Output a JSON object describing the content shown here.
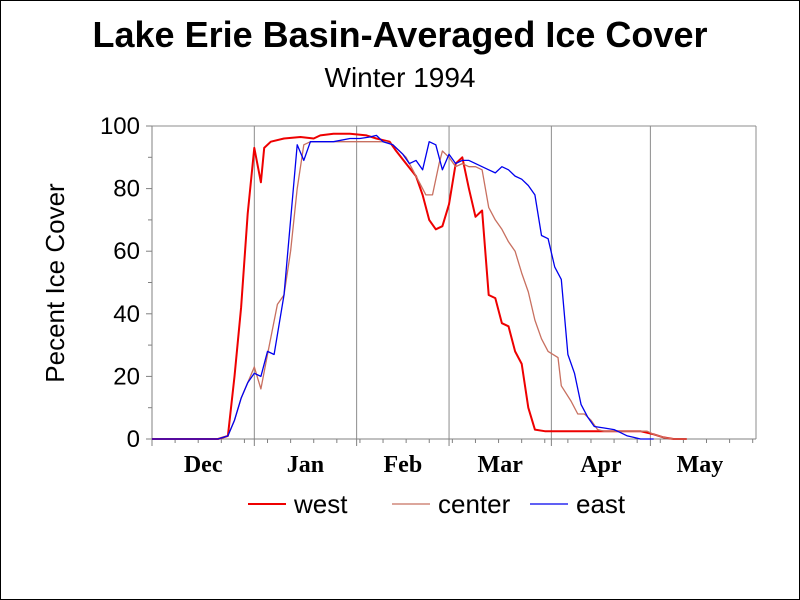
{
  "chart_data": {
    "type": "line",
    "title": "Lake Erie Basin-Averaged Ice Cover",
    "subtitle": "Winter 1994",
    "xlabel": "",
    "ylabel": "Pecent Ice Cover",
    "x_unit": "day of season (Dec 1 = 0)",
    "xlim": [
      0,
      183
    ],
    "ylim": [
      0,
      100
    ],
    "yticks": [
      0,
      20,
      40,
      60,
      80,
      100
    ],
    "months": [
      {
        "label": "Dec",
        "start": 0
      },
      {
        "label": "Jan",
        "start": 31
      },
      {
        "label": "Feb",
        "start": 62
      },
      {
        "label": "Mar",
        "start": 90
      },
      {
        "label": "Apr",
        "start": 121
      },
      {
        "label": "May",
        "start": 151
      }
    ],
    "legend_position": "bottom",
    "grid": "vertical",
    "series": [
      {
        "name": "west",
        "color": "#ee0000",
        "points": [
          [
            0,
            0
          ],
          [
            15,
            0
          ],
          [
            20,
            0
          ],
          [
            23,
            1
          ],
          [
            25,
            20
          ],
          [
            27,
            42
          ],
          [
            29,
            72
          ],
          [
            31,
            93
          ],
          [
            33,
            82
          ],
          [
            34,
            93
          ],
          [
            36,
            95
          ],
          [
            40,
            96
          ],
          [
            45,
            96.5
          ],
          [
            49,
            96
          ],
          [
            51,
            97
          ],
          [
            55,
            97.5
          ],
          [
            60,
            97.5
          ],
          [
            65,
            97
          ],
          [
            68,
            96
          ],
          [
            72,
            95
          ],
          [
            74,
            92
          ],
          [
            77,
            88
          ],
          [
            80,
            84
          ],
          [
            82,
            78
          ],
          [
            84,
            70
          ],
          [
            86,
            67
          ],
          [
            88,
            68
          ],
          [
            90,
            75
          ],
          [
            92,
            88
          ],
          [
            94,
            90
          ],
          [
            96,
            80
          ],
          [
            98,
            71
          ],
          [
            100,
            73
          ],
          [
            102,
            46
          ],
          [
            104,
            45
          ],
          [
            106,
            37
          ],
          [
            108,
            36
          ],
          [
            110,
            28
          ],
          [
            112,
            24
          ],
          [
            114,
            10
          ],
          [
            116,
            3
          ],
          [
            119,
            2.5
          ],
          [
            123,
            2.5
          ],
          [
            128,
            2.5
          ],
          [
            132,
            2.5
          ],
          [
            136,
            2.5
          ],
          [
            140,
            2.5
          ],
          [
            144,
            2.5
          ],
          [
            148,
            2.5
          ],
          [
            152,
            1.5
          ],
          [
            155,
            0.5
          ],
          [
            158,
            0
          ],
          [
            162,
            0
          ]
        ]
      },
      {
        "name": "center",
        "color": "#c87060",
        "points": [
          [
            0,
            0
          ],
          [
            15,
            0
          ],
          [
            20,
            0
          ],
          [
            23,
            1
          ],
          [
            25,
            6
          ],
          [
            27,
            13
          ],
          [
            29,
            18
          ],
          [
            31,
            23
          ],
          [
            33,
            16
          ],
          [
            35,
            27
          ],
          [
            38,
            43
          ],
          [
            40,
            46
          ],
          [
            42,
            60
          ],
          [
            44,
            80
          ],
          [
            46,
            94
          ],
          [
            48,
            95
          ],
          [
            51,
            95
          ],
          [
            55,
            95
          ],
          [
            60,
            95
          ],
          [
            64,
            95
          ],
          [
            68,
            95
          ],
          [
            71,
            95
          ],
          [
            73,
            94
          ],
          [
            75,
            92
          ],
          [
            77,
            90
          ],
          [
            79,
            86
          ],
          [
            81,
            82
          ],
          [
            83,
            78
          ],
          [
            85,
            78
          ],
          [
            87,
            88
          ],
          [
            88,
            92
          ],
          [
            90,
            90
          ],
          [
            92,
            87
          ],
          [
            94,
            88
          ],
          [
            96,
            87
          ],
          [
            98,
            87
          ],
          [
            100,
            86
          ],
          [
            102,
            74
          ],
          [
            104,
            70
          ],
          [
            106,
            67
          ],
          [
            108,
            63
          ],
          [
            110,
            60
          ],
          [
            112,
            53
          ],
          [
            114,
            47
          ],
          [
            116,
            38
          ],
          [
            118,
            32
          ],
          [
            120,
            28
          ],
          [
            123,
            26
          ],
          [
            124,
            17
          ],
          [
            127,
            12
          ],
          [
            129,
            8
          ],
          [
            131,
            8
          ],
          [
            133,
            6
          ],
          [
            135,
            3
          ],
          [
            137,
            2.5
          ],
          [
            142,
            2.5
          ],
          [
            146,
            2.5
          ],
          [
            150,
            2.5
          ],
          [
            152,
            1.5
          ],
          [
            155,
            0.5
          ],
          [
            158,
            0
          ],
          [
            162,
            0
          ]
        ]
      },
      {
        "name": "east",
        "color": "#0000ee",
        "points": [
          [
            0,
            0
          ],
          [
            15,
            0
          ],
          [
            20,
            0
          ],
          [
            23,
            1
          ],
          [
            25,
            6
          ],
          [
            27,
            13
          ],
          [
            29,
            18
          ],
          [
            31,
            21
          ],
          [
            33,
            20
          ],
          [
            35,
            28
          ],
          [
            37,
            27
          ],
          [
            40,
            46
          ],
          [
            42,
            70
          ],
          [
            44,
            94
          ],
          [
            46,
            89
          ],
          [
            48,
            95
          ],
          [
            51,
            95
          ],
          [
            55,
            95
          ],
          [
            60,
            96
          ],
          [
            63,
            96
          ],
          [
            66,
            96.5
          ],
          [
            68,
            97
          ],
          [
            70,
            95
          ],
          [
            73,
            94
          ],
          [
            76,
            91
          ],
          [
            78,
            88
          ],
          [
            80,
            89
          ],
          [
            82,
            86
          ],
          [
            84,
            95
          ],
          [
            86,
            94
          ],
          [
            88,
            86
          ],
          [
            90,
            91
          ],
          [
            92,
            88
          ],
          [
            94,
            89
          ],
          [
            96,
            89
          ],
          [
            98,
            88
          ],
          [
            100,
            87
          ],
          [
            102,
            86
          ],
          [
            104,
            85
          ],
          [
            106,
            87
          ],
          [
            108,
            86
          ],
          [
            110,
            84
          ],
          [
            112,
            83
          ],
          [
            114,
            81
          ],
          [
            116,
            78
          ],
          [
            118,
            65
          ],
          [
            120,
            64
          ],
          [
            122,
            55
          ],
          [
            124,
            51
          ],
          [
            126,
            27
          ],
          [
            128,
            21
          ],
          [
            130,
            11
          ],
          [
            132,
            7
          ],
          [
            134,
            4
          ],
          [
            137,
            3.5
          ],
          [
            140,
            3
          ],
          [
            142,
            2
          ],
          [
            144,
            1
          ],
          [
            146,
            0.5
          ],
          [
            148,
            0
          ],
          [
            150,
            0
          ],
          [
            152,
            0
          ]
        ]
      }
    ]
  }
}
